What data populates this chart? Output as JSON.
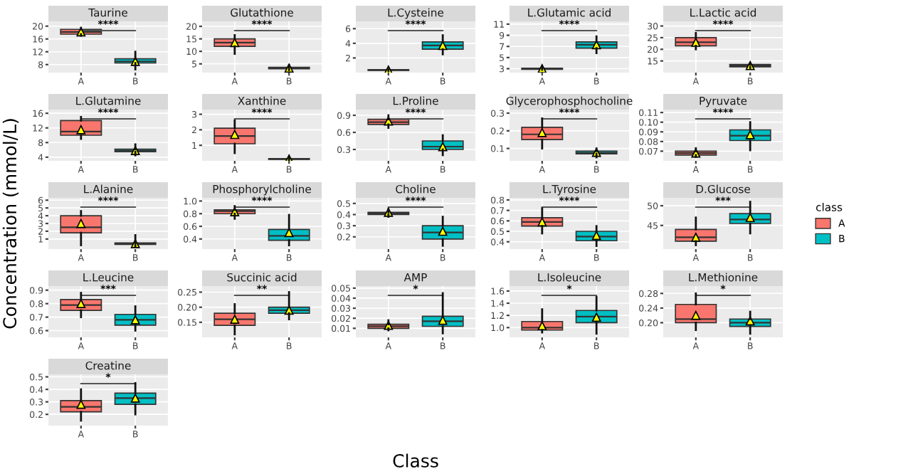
{
  "chart_data": [
    {
      "type": "box",
      "title": "Taurine",
      "categories": [
        "A",
        "B"
      ],
      "series": [
        {
          "color": "#f8766d",
          "boxes": [
            {
              "low": 17,
              "q1": 17.5,
              "median": 18.2,
              "q3": 19,
              "high": 19.5,
              "mean": 18.2
            },
            null
          ]
        },
        {
          "color": "#00bfc4",
          "boxes": [
            null,
            {
              "low": 6.5,
              "q1": 8.5,
              "median": 9,
              "q3": 9.8,
              "high": 12,
              "mean": 9
            }
          ]
        }
      ],
      "ylim": [
        5.5,
        21.5
      ],
      "yticks": [
        8,
        12,
        16,
        20
      ],
      "grid": true,
      "annotations": [
        "****"
      ]
    },
    {
      "type": "box",
      "title": "Glutathione",
      "categories": [
        "A",
        "B"
      ],
      "series": [
        {
          "color": "#f8766d",
          "boxes": [
            {
              "low": 9,
              "q1": 12,
              "median": 13.5,
              "q3": 15,
              "high": 16.5,
              "mean": 13.5
            },
            null
          ]
        },
        {
          "color": "#00bfc4",
          "boxes": [
            null,
            {
              "low": 2.5,
              "q1": 3,
              "median": 3.3,
              "q3": 3.6,
              "high": 4.5,
              "mean": 3.3
            }
          ]
        }
      ],
      "ylim": [
        1.5,
        22
      ],
      "yticks": [
        5,
        10,
        15,
        20
      ],
      "grid": true,
      "annotations": [
        "****"
      ]
    },
    {
      "type": "box",
      "title": "L.Cysteine",
      "categories": [
        "A",
        "B"
      ],
      "series": [
        {
          "color": "#f8766d",
          "boxes": [
            {
              "low": 0.2,
              "q1": 0.3,
              "median": 0.35,
              "q3": 0.4,
              "high": 0.5,
              "mean": 0.35
            },
            null
          ]
        },
        {
          "color": "#00bfc4",
          "boxes": [
            null,
            {
              "low": 2.5,
              "q1": 3.2,
              "median": 3.7,
              "q3": 4.2,
              "high": 5.1,
              "mean": 3.7
            }
          ]
        }
      ],
      "ylim": [
        0,
        7
      ],
      "yticks": [
        2,
        4,
        6
      ],
      "grid": true,
      "annotations": [
        "****"
      ]
    },
    {
      "type": "box",
      "title": "L.Glutamic acid",
      "categories": [
        "A",
        "B"
      ],
      "series": [
        {
          "color": "#f8766d",
          "boxes": [
            {
              "low": 2.8,
              "q1": 2.9,
              "median": 3,
              "q3": 3.1,
              "high": 3.3,
              "mean": 3
            },
            null
          ]
        },
        {
          "color": "#00bfc4",
          "boxes": [
            null,
            {
              "low": 5.8,
              "q1": 6.7,
              "median": 7.3,
              "q3": 7.8,
              "high": 8.8,
              "mean": 7.3
            }
          ]
        }
      ],
      "ylim": [
        2.3,
        11.5
      ],
      "yticks": [
        3,
        5,
        7,
        9,
        11
      ],
      "grid": true,
      "annotations": [
        "****"
      ]
    },
    {
      "type": "box",
      "title": "L.Lactic acid",
      "categories": [
        "A",
        "B"
      ],
      "series": [
        {
          "color": "#f8766d",
          "boxes": [
            {
              "low": 20,
              "q1": 21.5,
              "median": 23,
              "q3": 25,
              "high": 27,
              "mean": 23
            },
            null
          ]
        },
        {
          "color": "#00bfc4",
          "boxes": [
            null,
            {
              "low": 12,
              "q1": 12.5,
              "median": 13,
              "q3": 13.5,
              "high": 14,
              "mean": 13
            }
          ]
        }
      ],
      "ylim": [
        10,
        32
      ],
      "yticks": [
        15,
        20,
        25,
        30
      ],
      "grid": true,
      "annotations": [
        "****"
      ]
    },
    {
      "type": "box",
      "title": "L.Glutamine",
      "categories": [
        "A",
        "B"
      ],
      "series": [
        {
          "color": "#f8766d",
          "boxes": [
            {
              "low": 9,
              "q1": 10,
              "median": 11,
              "q3": 14,
              "high": 15,
              "mean": 11.5
            },
            null
          ]
        },
        {
          "color": "#00bfc4",
          "boxes": [
            null,
            {
              "low": 4.5,
              "q1": 5.5,
              "median": 5.8,
              "q3": 6.2,
              "high": 7.5,
              "mean": 5.8
            }
          ]
        }
      ],
      "ylim": [
        3,
        17
      ],
      "yticks": [
        4,
        8,
        12,
        16
      ],
      "grid": true,
      "annotations": [
        "****"
      ]
    },
    {
      "type": "box",
      "title": "Xanthine",
      "categories": [
        "A",
        "B"
      ],
      "series": [
        {
          "color": "#f8766d",
          "boxes": [
            {
              "low": 0.5,
              "q1": 1.1,
              "median": 1.6,
              "q3": 2.1,
              "high": 2.6,
              "mean": 1.7
            },
            null
          ]
        },
        {
          "color": "#00bfc4",
          "boxes": [
            null,
            {
              "low": 0.05,
              "q1": 0.1,
              "median": 0.12,
              "q3": 0.15,
              "high": 0.2,
              "mean": 0.12
            }
          ]
        }
      ],
      "ylim": [
        0,
        3.3
      ],
      "yticks": [
        1,
        2,
        3
      ],
      "grid": true,
      "annotations": [
        "****"
      ]
    },
    {
      "type": "box",
      "title": "L.Proline",
      "categories": [
        "A",
        "B"
      ],
      "series": [
        {
          "color": "#f8766d",
          "boxes": [
            {
              "low": 0.68,
              "q1": 0.74,
              "median": 0.78,
              "q3": 0.83,
              "high": 0.9,
              "mean": 0.8
            },
            null
          ]
        },
        {
          "color": "#00bfc4",
          "boxes": [
            null,
            {
              "low": 0.2,
              "q1": 0.3,
              "median": 0.35,
              "q3": 0.45,
              "high": 0.55,
              "mean": 0.35
            }
          ]
        }
      ],
      "ylim": [
        0.1,
        1.0
      ],
      "yticks": [
        0.3,
        0.6,
        0.9
      ],
      "grid": true,
      "annotations": [
        "****"
      ]
    },
    {
      "type": "box",
      "title": "Glycerophosphocholine",
      "categories": [
        "A",
        "B"
      ],
      "series": [
        {
          "color": "#f8766d",
          "boxes": [
            {
              "low": 0.1,
              "q1": 0.15,
              "median": 0.18,
              "q3": 0.22,
              "high": 0.27,
              "mean": 0.19
            },
            null
          ]
        },
        {
          "color": "#00bfc4",
          "boxes": [
            null,
            {
              "low": 0.05,
              "q1": 0.07,
              "median": 0.075,
              "q3": 0.085,
              "high": 0.1,
              "mean": 0.078
            }
          ]
        }
      ],
      "ylim": [
        0.03,
        0.32
      ],
      "yticks": [
        0.1,
        0.2,
        0.3
      ],
      "grid": true,
      "annotations": [
        "****"
      ]
    },
    {
      "type": "box",
      "title": "Pyruvate",
      "categories": [
        "A",
        "B"
      ],
      "series": [
        {
          "color": "#f8766d",
          "boxes": [
            {
              "low": 0.064,
              "q1": 0.066,
              "median": 0.068,
              "q3": 0.07,
              "high": 0.073,
              "mean": 0.068
            },
            null
          ]
        },
        {
          "color": "#00bfc4",
          "boxes": [
            null,
            {
              "low": 0.071,
              "q1": 0.081,
              "median": 0.086,
              "q3": 0.092,
              "high": 0.1,
              "mean": 0.087
            }
          ]
        }
      ],
      "ylim": [
        0.06,
        0.113
      ],
      "yticks": [
        {
          "value": 0.07,
          "label": "0.07"
        },
        {
          "value": 0.08,
          "label": "0.08"
        },
        {
          "value": 0.09,
          "label": "0.09"
        },
        {
          "value": 0.1,
          "label": "0.10"
        },
        {
          "value": 0.11,
          "label": "0.11"
        }
      ],
      "grid": true,
      "annotations": [
        "****"
      ]
    },
    {
      "type": "box",
      "title": "L.Alanine",
      "categories": [
        "A",
        "B"
      ],
      "series": [
        {
          "color": "#f8766d",
          "boxes": [
            {
              "low": 0.2,
              "q1": 1.8,
              "median": 2.5,
              "q3": 4,
              "high": 4.6,
              "mean": 3
            },
            null
          ]
        },
        {
          "color": "#00bfc4",
          "boxes": [
            null,
            {
              "low": 0.1,
              "q1": 0.3,
              "median": 0.4,
              "q3": 0.5,
              "high": 1.5,
              "mean": 0.4
            }
          ]
        }
      ],
      "ylabel": "Concentration (mmol/L)",
      "ylim": [
        -0.3,
        6.3
      ],
      "yticks": [
        1,
        2,
        3,
        4,
        5,
        6
      ],
      "grid": true,
      "annotations": [
        "****"
      ]
    },
    {
      "type": "box",
      "title": "Phosphorylcholine",
      "categories": [
        "A",
        "B"
      ],
      "series": [
        {
          "color": "#f8766d",
          "boxes": [
            {
              "low": 0.72,
              "q1": 0.8,
              "median": 0.84,
              "q3": 0.86,
              "high": 0.92,
              "mean": 0.83
            },
            null
          ]
        },
        {
          "color": "#00bfc4",
          "boxes": [
            null,
            {
              "low": 0.3,
              "q1": 0.38,
              "median": 0.45,
              "q3": 0.55,
              "high": 0.78,
              "mean": 0.5
            }
          ]
        }
      ],
      "ylim": [
        0.24,
        1.05
      ],
      "yticks": [
        0.4,
        0.6,
        0.8,
        {
          "value": 1.0,
          "label": "1.0"
        }
      ],
      "grid": true,
      "annotations": [
        "****"
      ]
    },
    {
      "type": "box",
      "title": "Choline",
      "categories": [
        "A",
        "B"
      ],
      "series": [
        {
          "color": "#f8766d",
          "boxes": [
            {
              "low": 0.38,
              "q1": 0.4,
              "median": 0.41,
              "q3": 0.42,
              "high": 0.45,
              "mean": 0.42
            },
            null
          ]
        },
        {
          "color": "#00bfc4",
          "boxes": [
            null,
            {
              "low": 0.12,
              "q1": 0.18,
              "median": 0.24,
              "q3": 0.3,
              "high": 0.38,
              "mean": 0.25
            }
          ]
        }
      ],
      "ylim": [
        0.09,
        0.55
      ],
      "yticks": [
        0.2,
        0.3,
        0.4,
        0.5
      ],
      "grid": true,
      "annotations": [
        "****"
      ]
    },
    {
      "type": "box",
      "title": "L.Tyrosine",
      "categories": [
        "A",
        "B"
      ],
      "series": [
        {
          "color": "#f8766d",
          "boxes": [
            {
              "low": 0.48,
              "q1": 0.55,
              "median": 0.59,
              "q3": 0.63,
              "high": 0.72,
              "mean": 0.59
            },
            null
          ]
        },
        {
          "color": "#00bfc4",
          "boxes": [
            null,
            {
              "low": 0.36,
              "q1": 0.41,
              "median": 0.45,
              "q3": 0.5,
              "high": 0.55,
              "mean": 0.46
            }
          ]
        }
      ],
      "ylim": [
        0.33,
        0.82
      ],
      "yticks": [
        0.4,
        0.5,
        0.6,
        0.7,
        0.8
      ],
      "grid": true,
      "annotations": [
        "****"
      ]
    },
    {
      "type": "box",
      "title": "D.Glucose",
      "categories": [
        "A",
        "B"
      ],
      "legend": "right",
      "legend_title": "class",
      "series": [
        {
          "name": "A",
          "color": "#f8766d",
          "boxes": [
            {
              "low": 40,
              "q1": 41,
              "median": 42,
              "q3": 44,
              "high": 47,
              "mean": 42
            },
            null
          ]
        },
        {
          "name": "B",
          "color": "#00bfc4",
          "boxes": [
            null,
            {
              "low": 43,
              "q1": 45.5,
              "median": 46.5,
              "q3": 48,
              "high": 51,
              "mean": 47
            }
          ]
        }
      ],
      "ylim": [
        39,
        52
      ],
      "yticks": [
        45,
        50
      ],
      "grid": true,
      "annotations": [
        "***"
      ]
    },
    {
      "type": "box",
      "title": "L.Leucine",
      "categories": [
        "A",
        "B"
      ],
      "series": [
        {
          "color": "#f8766d",
          "boxes": [
            {
              "low": 0.7,
              "q1": 0.75,
              "median": 0.79,
              "q3": 0.83,
              "high": 0.88,
              "mean": 0.8
            },
            null
          ]
        },
        {
          "color": "#00bfc4",
          "boxes": [
            null,
            {
              "low": 0.6,
              "q1": 0.64,
              "median": 0.68,
              "q3": 0.72,
              "high": 0.78,
              "mean": 0.68
            }
          ]
        }
      ],
      "ylim": [
        0.55,
        0.93
      ],
      "yticks": [
        0.6,
        0.7,
        0.8,
        0.9
      ],
      "grid": true,
      "annotations": [
        "***"
      ]
    },
    {
      "type": "box",
      "title": "Succinic acid",
      "categories": [
        "A",
        "B"
      ],
      "series": [
        {
          "color": "#f8766d",
          "boxes": [
            {
              "low": 0.11,
              "q1": 0.14,
              "median": 0.16,
              "q3": 0.18,
              "high": 0.21,
              "mean": 0.16
            },
            null
          ]
        },
        {
          "color": "#00bfc4",
          "boxes": [
            null,
            {
              "low": 0.16,
              "q1": 0.18,
              "median": 0.19,
              "q3": 0.2,
              "high": 0.25,
              "mean": 0.19
            }
          ]
        }
      ],
      "ylim": [
        0.1,
        0.27
      ],
      "yticks": [
        0.15,
        {
          "value": 0.2,
          "label": "0.20"
        },
        0.25
      ],
      "grid": true,
      "annotations": [
        "**"
      ]
    },
    {
      "type": "box",
      "title": "AMP",
      "categories": [
        "A",
        "B"
      ],
      "series": [
        {
          "color": "#f8766d",
          "boxes": [
            {
              "low": 0.008,
              "q1": 0.01,
              "median": 0.012,
              "q3": 0.014,
              "high": 0.018,
              "mean": 0.013
            },
            null
          ]
        },
        {
          "color": "#00bfc4",
          "boxes": [
            null,
            {
              "low": 0.005,
              "q1": 0.012,
              "median": 0.017,
              "q3": 0.022,
              "high": 0.045,
              "mean": 0.018
            }
          ]
        }
      ],
      "xlabel": "Class",
      "ylim": [
        0.001,
        0.052
      ],
      "yticks": [
        0.01,
        0.02,
        0.03,
        0.04,
        0.05
      ],
      "grid": true,
      "annotations": [
        "*"
      ]
    },
    {
      "type": "box",
      "title": "L.Isoleucine",
      "categories": [
        "A",
        "B"
      ],
      "series": [
        {
          "color": "#f8766d",
          "boxes": [
            {
              "low": 0.92,
              "q1": 0.96,
              "median": 1.0,
              "q3": 1.1,
              "high": 1.3,
              "mean": 1.03
            },
            null
          ]
        },
        {
          "color": "#00bfc4",
          "boxes": [
            null,
            {
              "low": 0.9,
              "q1": 1.08,
              "median": 1.18,
              "q3": 1.28,
              "high": 1.5,
              "mean": 1.17
            }
          ]
        }
      ],
      "ylim": [
        0.84,
        1.68
      ],
      "yticks": [
        {
          "value": 1.0,
          "label": "1.0"
        },
        1.2,
        1.4,
        1.6
      ],
      "grid": true,
      "annotations": [
        "*"
      ]
    },
    {
      "type": "box",
      "title": "L.Methionine",
      "categories": [
        "A",
        "B"
      ],
      "series": [
        {
          "color": "#f8766d",
          "boxes": [
            {
              "low": 0.18,
              "q1": 0.2,
              "median": 0.21,
              "q3": 0.25,
              "high": 0.28,
              "mean": 0.22
            },
            null
          ]
        },
        {
          "color": "#00bfc4",
          "boxes": [
            null,
            {
              "low": 0.17,
              "q1": 0.19,
              "median": 0.2,
              "q3": 0.21,
              "high": 0.23,
              "mean": 0.205
            }
          ]
        }
      ],
      "ylim": [
        0.16,
        0.3
      ],
      "yticks": [
        {
          "value": 0.2,
          "label": "0.20"
        },
        0.24,
        0.28
      ],
      "grid": true,
      "annotations": [
        "*"
      ]
    },
    {
      "type": "box",
      "title": "Creatine",
      "categories": [
        "A",
        "B"
      ],
      "series": [
        {
          "color": "#f8766d",
          "boxes": [
            {
              "low": 0.15,
              "q1": 0.22,
              "median": 0.26,
              "q3": 0.31,
              "high": 0.4,
              "mean": 0.28
            },
            null
          ]
        },
        {
          "color": "#00bfc4",
          "boxes": [
            null,
            {
              "low": 0.2,
              "q1": 0.28,
              "median": 0.33,
              "q3": 0.37,
              "high": 0.45,
              "mean": 0.33
            }
          ]
        }
      ],
      "ylim": [
        0.11,
        0.52
      ],
      "yticks": [
        0.2,
        0.3,
        0.4,
        0.5
      ],
      "grid": true,
      "annotations": [
        "*"
      ]
    }
  ]
}
